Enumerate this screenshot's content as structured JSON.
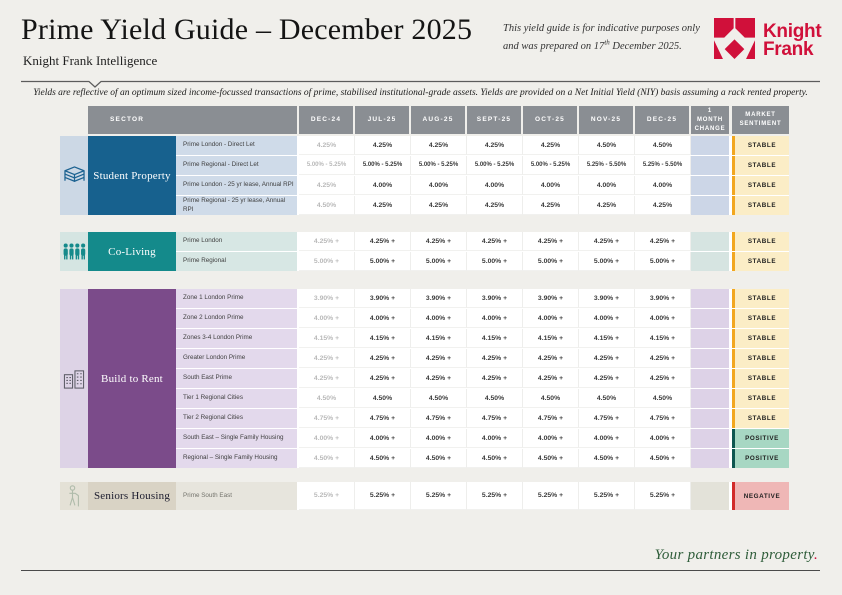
{
  "header": {
    "title": "Prime Yield Guide – December 2025",
    "subtitle": "Knight Frank Intelligence",
    "note_line1": "This yield guide is for indicative purposes only",
    "note_line2_pre": "and was prepared on 17",
    "note_line2_sup": "th",
    "note_line2_post": " December 2025.",
    "logo_line1": "Knight",
    "logo_line2": "Frank",
    "logo_color": "#d0103a"
  },
  "disclaimer": "Yields are reflective of an optimum sized income-focussed transactions of prime, stabilised institutional-grade assets. Yields are provided on a Net Initial Yield (NIY) basis assuming a rack rented property.",
  "table": {
    "sector_header": "SECTOR",
    "columns": [
      "DEC-24",
      "JUL-25",
      "AUG-25",
      "SEPT-25",
      "OCT-25",
      "NOV-25",
      "DEC-25"
    ],
    "change_header": "1\nMONTH\nCHANGE",
    "sentiment_header": "MARKET\nSENTIMENT",
    "header_bg": "#8a8e93",
    "sections": [
      {
        "name": "Student Property",
        "icon": "books-icon",
        "colors": {
          "sector_bg": "#17618e",
          "sector_text": "#ffffff",
          "icon_bg": "#ccd8e5",
          "icon_color": "#1c6291",
          "label_bg": "#cfdbe9",
          "label_text": "#3f3f3f",
          "change_bg": "#ccd6e7"
        },
        "rows": [
          {
            "label": "Prime London - Direct Let",
            "values": [
              "4.25%",
              "4.25%",
              "4.25%",
              "4.25%",
              "4.25%",
              "4.50%",
              "4.50%"
            ],
            "sentiment": "STABLE"
          },
          {
            "label": "Prime Regional - Direct Let",
            "values": [
              "5.00% - 5.25%",
              "5.00% - 5.25%",
              "5.00% - 5.25%",
              "5.00% - 5.25%",
              "5.00% - 5.25%",
              "5.25% - 5.50%",
              "5.25% - 5.50%"
            ],
            "sentiment": "STABLE"
          },
          {
            "label": "Prime London - 25 yr lease, Annual RPI",
            "values": [
              "4.25%",
              "4.00%",
              "4.00%",
              "4.00%",
              "4.00%",
              "4.00%",
              "4.00%"
            ],
            "sentiment": "STABLE"
          },
          {
            "label": "Prime Regional - 25 yr lease, Annual RPI",
            "values": [
              "4.50%",
              "4.25%",
              "4.25%",
              "4.25%",
              "4.25%",
              "4.25%",
              "4.25%"
            ],
            "sentiment": "STABLE"
          }
        ]
      },
      {
        "name": "Co-Living",
        "icon": "people-icon",
        "colors": {
          "sector_bg": "#148a8b",
          "sector_text": "#ffffff",
          "icon_bg": "#d5e5e2",
          "icon_color": "#148a8b",
          "label_bg": "#d7e7e4",
          "label_text": "#3f3f3f",
          "change_bg": "#d6e4e1"
        },
        "rows": [
          {
            "label": "Prime London",
            "values": [
              "4.25% +",
              "4.25% +",
              "4.25% +",
              "4.25% +",
              "4.25% +",
              "4.25% +",
              "4.25% +"
            ],
            "sentiment": "STABLE"
          },
          {
            "label": "Prime Regional",
            "values": [
              "5.00% +",
              "5.00% +",
              "5.00% +",
              "5.00% +",
              "5.00% +",
              "5.00% +",
              "5.00% +"
            ],
            "sentiment": "STABLE"
          }
        ]
      },
      {
        "name": "Build to Rent",
        "icon": "buildings-icon",
        "colors": {
          "sector_bg": "#7b4b8a",
          "sector_text": "#ffffff",
          "icon_bg": "#ddd3e6",
          "icon_color": "#5c5c66",
          "label_bg": "#e3d9ec",
          "label_text": "#3f3f3f",
          "change_bg": "#ddd2e7"
        },
        "rows": [
          {
            "label": "Zone 1 London Prime",
            "values": [
              "3.90% +",
              "3.90% +",
              "3.90% +",
              "3.90% +",
              "3.90% +",
              "3.90% +",
              "3.90% +"
            ],
            "sentiment": "STABLE"
          },
          {
            "label": "Zone 2 London Prime",
            "values": [
              "4.00% +",
              "4.00% +",
              "4.00% +",
              "4.00% +",
              "4.00% +",
              "4.00% +",
              "4.00% +"
            ],
            "sentiment": "STABLE"
          },
          {
            "label": "Zones 3-4 London Prime",
            "values": [
              "4.15% +",
              "4.15% +",
              "4.15% +",
              "4.15% +",
              "4.15% +",
              "4.15% +",
              "4.15% +"
            ],
            "sentiment": "STABLE"
          },
          {
            "label": "Greater London Prime",
            "values": [
              "4.25% +",
              "4.25% +",
              "4.25% +",
              "4.25% +",
              "4.25% +",
              "4.25% +",
              "4.25% +"
            ],
            "sentiment": "STABLE"
          },
          {
            "label": "South East Prime",
            "values": [
              "4.25% +",
              "4.25% +",
              "4.25% +",
              "4.25% +",
              "4.25% +",
              "4.25% +",
              "4.25% +"
            ],
            "sentiment": "STABLE"
          },
          {
            "label": "Tier 1 Regional Cities",
            "values": [
              "4.50%",
              "4.50%",
              "4.50%",
              "4.50%",
              "4.50%",
              "4.50%",
              "4.50%"
            ],
            "sentiment": "STABLE"
          },
          {
            "label": "Tier 2 Regional Cities",
            "values": [
              "4.75% +",
              "4.75% +",
              "4.75% +",
              "4.75% +",
              "4.75% +",
              "4.75% +",
              "4.75% +"
            ],
            "sentiment": "STABLE"
          },
          {
            "label": "South East – Single Family Housing",
            "values": [
              "4.00% +",
              "4.00% +",
              "4.00% +",
              "4.00% +",
              "4.00% +",
              "4.00% +",
              "4.00% +"
            ],
            "sentiment": "POSITIVE"
          },
          {
            "label": "Regional – Single Family Housing",
            "values": [
              "4.50% +",
              "4.50% +",
              "4.50% +",
              "4.50% +",
              "4.50% +",
              "4.50% +",
              "4.50% +"
            ],
            "sentiment": "POSITIVE"
          }
        ]
      },
      {
        "name": "Seniors Housing",
        "icon": "senior-icon",
        "colors": {
          "sector_bg": "#d9d3c5",
          "sector_text": "#1c1c2e",
          "icon_bg": "#e4e1d6",
          "icon_color": "#afbbaa",
          "label_bg": "#e7e5dd",
          "label_text": "#73736c",
          "change_bg": "#e3e2d9"
        },
        "rows": [
          {
            "label": "Prime South East",
            "values": [
              "5.25% +",
              "5.25% +",
              "5.25% +",
              "5.25% +",
              "5.25% +",
              "5.25% +",
              "5.25% +"
            ],
            "sentiment": "NEGATIVE"
          }
        ]
      }
    ]
  },
  "sentiment_styles": {
    "STABLE": {
      "bg": "#fbedc6",
      "border": "#f2a71f"
    },
    "POSITIVE": {
      "bg": "#a7d7c3",
      "border": "#0d5650"
    },
    "NEGATIVE": {
      "bg": "#efb7b6",
      "border": "#d22b2a"
    }
  },
  "footer": {
    "text": "Your partners in property",
    "period": ".",
    "text_color": "#2f5d3a",
    "period_color": "#d0103a"
  }
}
